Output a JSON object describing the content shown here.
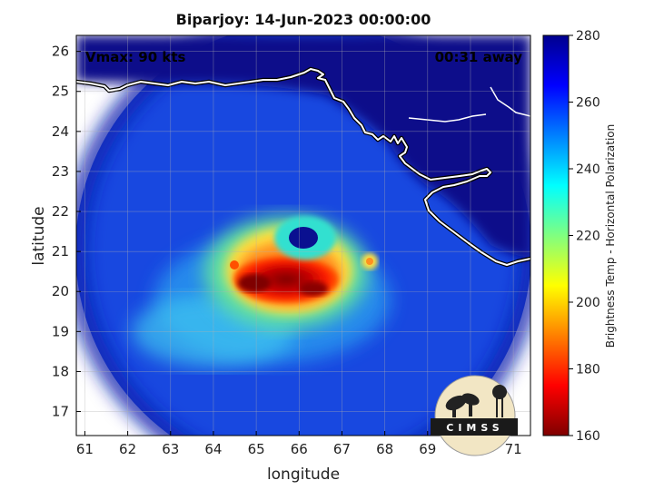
{
  "title": "Biparjoy: 14-Jun-2023 00:00:00",
  "annotations": {
    "vmax": "Vmax: 90 kts",
    "time_away": "00:31 away"
  },
  "map": {
    "xlabel": "longitude",
    "ylabel": "latitude",
    "xlim": [
      60.8,
      71.4
    ],
    "ylim": [
      16.4,
      26.4
    ],
    "xticks": [
      61,
      62,
      63,
      64,
      65,
      66,
      67,
      68,
      69,
      70,
      71
    ],
    "yticks": [
      17,
      18,
      19,
      20,
      21,
      22,
      23,
      24,
      25,
      26
    ],
    "grid": true,
    "swath_center": [
      66.1,
      21.3
    ],
    "swath_radius_deg": 5.3,
    "storm_eye": [
      66.1,
      21.4
    ],
    "cold_core": [
      65.6,
      20.4
    ]
  },
  "colorbar": {
    "label": "Brightness Temp - Horizontal Polarization",
    "min": 160,
    "max": 280,
    "ticks": [
      160,
      180,
      200,
      220,
      240,
      260,
      280
    ],
    "colormap": [
      "#7f0000",
      "#ff0000",
      "#ff8000",
      "#ffff00",
      "#80ff80",
      "#00ffff",
      "#0080ff",
      "#0000ff",
      "#00008f"
    ]
  },
  "logo": {
    "text": "CIMSS"
  }
}
